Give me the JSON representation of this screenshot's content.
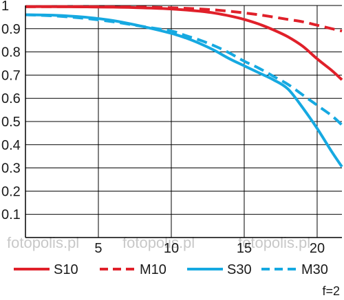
{
  "chart_data": {
    "type": "line",
    "x_ticks": [
      5,
      10,
      15,
      20
    ],
    "y_ticks": [
      "1",
      "0.9",
      "0.8",
      "0.7",
      "0.6",
      "0.5",
      "0.4",
      "0.3",
      "0.2",
      "0.1"
    ],
    "xlim": [
      0,
      21.7
    ],
    "ylim": [
      0,
      1
    ],
    "grid": true,
    "legend_position": "bottom",
    "annotation": "f=2",
    "watermark": "fotopolis.pl",
    "series": [
      {
        "name": "S10",
        "color": "#e0202a",
        "style": "solid",
        "x": [
          0,
          2,
          4,
          6,
          8,
          10,
          12,
          13,
          14,
          15,
          16,
          17,
          18,
          19,
          20,
          21,
          21.7
        ],
        "y": [
          0.995,
          0.995,
          0.994,
          0.993,
          0.99,
          0.985,
          0.975,
          0.967,
          0.955,
          0.94,
          0.92,
          0.895,
          0.865,
          0.825,
          0.77,
          0.72,
          0.68
        ]
      },
      {
        "name": "M10",
        "color": "#e0202a",
        "style": "dashed",
        "x": [
          0,
          2,
          4,
          6,
          8,
          10,
          12,
          14,
          16,
          18,
          19,
          20,
          21,
          21.7
        ],
        "y": [
          0.995,
          0.995,
          0.995,
          0.994,
          0.993,
          0.99,
          0.985,
          0.975,
          0.96,
          0.94,
          0.93,
          0.915,
          0.9,
          0.89
        ]
      },
      {
        "name": "S30",
        "color": "#16a9e1",
        "style": "solid",
        "x": [
          0,
          2,
          4,
          6,
          8,
          10,
          11,
          12,
          13,
          14,
          15,
          16,
          17,
          18,
          19,
          20,
          21,
          21.7
        ],
        "y": [
          0.96,
          0.958,
          0.95,
          0.935,
          0.91,
          0.88,
          0.86,
          0.835,
          0.805,
          0.77,
          0.74,
          0.71,
          0.68,
          0.64,
          0.56,
          0.47,
          0.37,
          0.305
        ]
      },
      {
        "name": "M30",
        "color": "#16a9e1",
        "style": "dashed",
        "x": [
          0,
          2,
          4,
          6,
          8,
          10,
          11,
          12,
          13,
          14,
          15,
          16,
          17,
          18,
          19,
          20,
          21,
          21.7
        ],
        "y": [
          0.96,
          0.955,
          0.945,
          0.93,
          0.91,
          0.89,
          0.87,
          0.85,
          0.825,
          0.795,
          0.76,
          0.73,
          0.695,
          0.66,
          0.615,
          0.57,
          0.525,
          0.485
        ]
      }
    ]
  }
}
